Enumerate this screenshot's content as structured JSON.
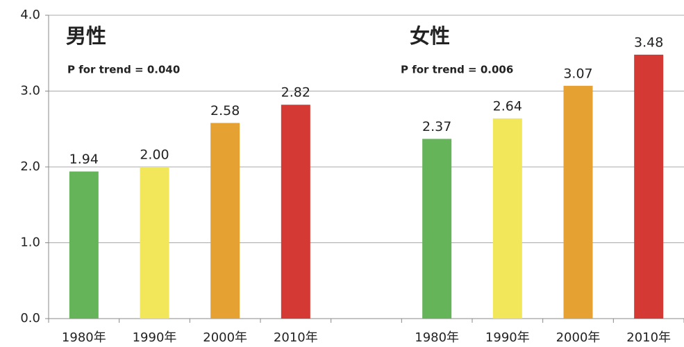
{
  "chart_data": {
    "type": "bar",
    "categories": [
      "1980年",
      "1990年",
      "2000年",
      "2010年",
      null,
      "1980年",
      "1990年",
      "2000年",
      "2010年"
    ],
    "values": [
      1.94,
      2.0,
      2.58,
      2.82,
      null,
      2.37,
      2.64,
      3.07,
      3.48
    ],
    "value_labels": [
      "1.94",
      "2.00",
      "2.58",
      "2.82",
      null,
      "2.37",
      "2.64",
      "3.07",
      "3.48"
    ],
    "colors": [
      "#66b45a",
      "#f2e65a",
      "#e5a233",
      "#d43a33",
      null,
      "#66b45a",
      "#f2e65a",
      "#e5a233",
      "#d43a33"
    ],
    "ylim": [
      0,
      4
    ],
    "yticks": [
      {
        "value": 0,
        "label": "0.0"
      },
      {
        "value": 1,
        "label": "1.0"
      },
      {
        "value": 2,
        "label": "2.0"
      },
      {
        "value": 3,
        "label": "3.0"
      },
      {
        "value": 4,
        "label": "4.0"
      }
    ],
    "grid": true,
    "annotations": [
      "男性",
      "P for trend = 0.040",
      "女性",
      "P for trend = 0.006"
    ]
  }
}
